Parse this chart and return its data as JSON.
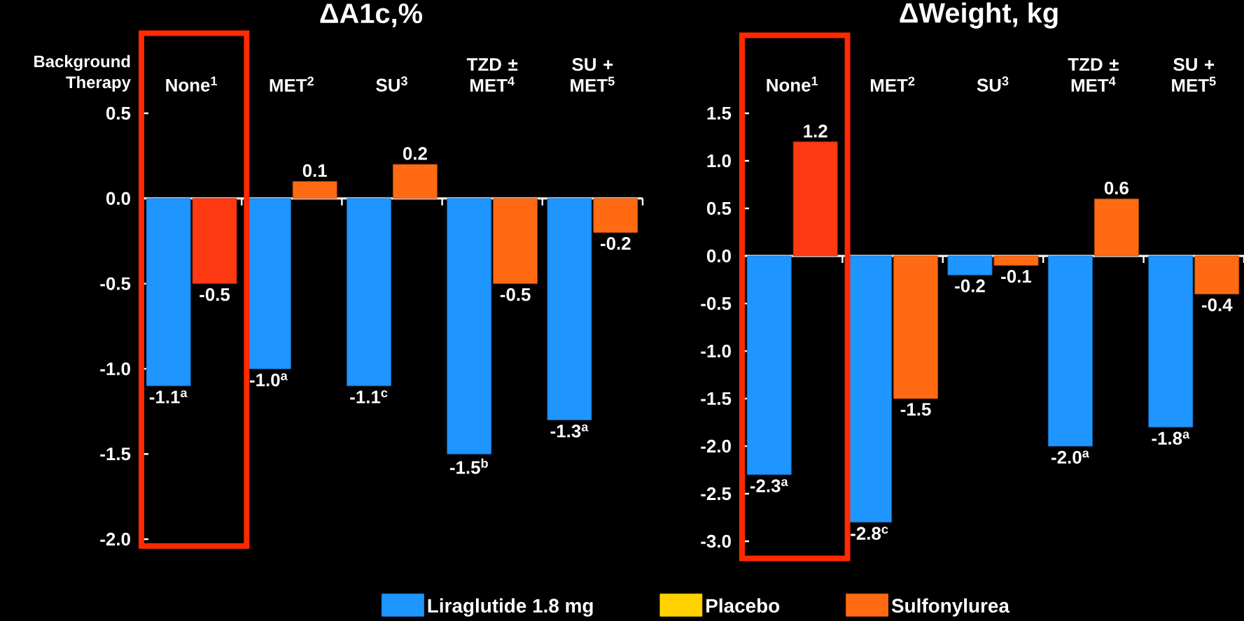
{
  "chart_data": [
    {
      "type": "bar",
      "title": "ΔA1c,%",
      "xlabel": "Background Therapy",
      "categories": [
        "None$^{1}$",
        "MET$^{2}$",
        "SU$^{3}$",
        "TZD ± MET$^{4}$",
        "SU + MET$^{5}$"
      ],
      "series": [
        {
          "color": "#1f95ff",
          "values": [
            -1.1,
            -1.0,
            -1.1,
            -1.5,
            -1.3
          ],
          "value_labels": [
            "-1.1$^{a}$",
            "-1.0$^{a}$",
            "-1.1$^{c}$",
            "-1.5$^{b}$",
            "-1.3$^{a}$"
          ]
        },
        {
          "colors": [
            "#ff3a12",
            "#ff6a12",
            "#ff6a12",
            "#ff6a12",
            "#ff6a12"
          ],
          "values": [
            -0.5,
            0.1,
            0.2,
            -0.5,
            -0.2
          ],
          "value_labels": [
            "-0.5",
            "0.1",
            "0.2",
            "-0.5",
            "-0.2"
          ]
        }
      ],
      "ylim": [
        -2.0,
        0.5
      ],
      "yticks": [
        {
          "value": -2.0,
          "label": "-2.0"
        },
        {
          "value": -1.5,
          "label": "-1.5"
        },
        {
          "value": -1.0,
          "label": "-1.0"
        },
        {
          "value": -0.5,
          "label": "-0.5"
        },
        {
          "value": 0.0,
          "label": "0.0"
        },
        {
          "value": 0.5,
          "label": "0.5"
        }
      ]
    },
    {
      "type": "bar",
      "title": "ΔWeight, kg",
      "categories": [
        "None$^{1}$",
        "MET$^{2}$",
        "SU$^{3}$",
        "TZD ± MET$^{4}$",
        "SU + MET$^{5}$"
      ],
      "series": [
        {
          "name": "Liraglutide 1.8 mg",
          "color": "#1f95ff",
          "values": [
            -2.3,
            -2.8,
            -0.2,
            -2.0,
            -1.8
          ],
          "value_labels": [
            "-2.3$^{a}$",
            "-2.8$^{c}$",
            "-0.2",
            "-2.0$^{a}$",
            "-1.8$^{a}$"
          ]
        },
        {
          "name": "Placebo",
          "color": "#ffd200",
          "values": [
            null,
            null,
            null,
            null,
            null
          ]
        },
        {
          "name": "Sulfonylurea",
          "color": "#ff6a12",
          "colors": [
            "#ff3a12",
            "#ff6a12",
            "#ff6a12",
            "#ff6a12",
            "#ff6a12"
          ],
          "values": [
            1.2,
            -1.5,
            -0.1,
            0.6,
            -0.4
          ],
          "value_labels": [
            "1.2",
            "-1.5",
            "-0.1",
            "0.6",
            "-0.4"
          ]
        }
      ],
      "ylim": [
        -3.0,
        1.5
      ],
      "yticks": [
        {
          "value": -3.0,
          "label": "-3.0"
        },
        {
          "value": -2.5,
          "label": "-2.5"
        },
        {
          "value": -2.0,
          "label": "-2.0"
        },
        {
          "value": -1.5,
          "label": "-1.5"
        },
        {
          "value": -1.0,
          "label": "-1.0"
        },
        {
          "value": -0.5,
          "label": "-0.5"
        },
        {
          "value": 0.0,
          "label": "0.0"
        },
        {
          "value": 0.5,
          "label": "0.5"
        },
        {
          "value": 1.0,
          "label": "1.0"
        },
        {
          "value": 1.5,
          "label": "1.5"
        }
      ],
      "legend": "bottom"
    }
  ]
}
